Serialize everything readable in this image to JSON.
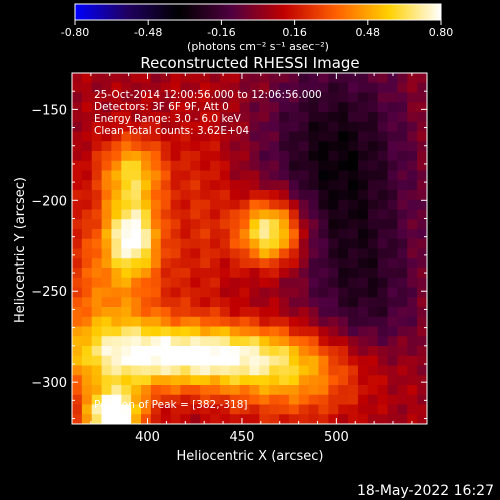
{
  "chart_data": {
    "type": "heatmap",
    "title": "Reconstructed RHESSI Image",
    "xlabel": "Heliocentric X (arcsec)",
    "ylabel": "Heliocentric Y (arcsec)",
    "xlim": [
      360,
      548
    ],
    "ylim": [
      -323,
      -130
    ],
    "x_ticks": [
      400,
      450,
      500
    ],
    "y_ticks": [
      -150,
      -200,
      -250,
      -300
    ],
    "colorbar": {
      "label": "(photons cm⁻² s⁻¹ asec⁻²)",
      "range": [
        -0.8,
        0.8
      ],
      "ticks": [
        "-0.80",
        "-0.48",
        "-0.16",
        "0.16",
        "0.48",
        "0.80"
      ],
      "colors": [
        "#0000ff",
        "#200060",
        "#000000",
        "#500040",
        "#c00000",
        "#ff6000",
        "#ffd000",
        "#ffffff"
      ]
    },
    "sources": [
      {
        "x": 465,
        "y": -217,
        "value": 0.75,
        "sx": 12,
        "sy": 13
      },
      {
        "x": 392,
        "y": -220,
        "value": 0.62,
        "sx": 10,
        "sy": 14
      },
      {
        "x": 392,
        "y": -185,
        "value": 0.5,
        "sx": 12,
        "sy": 14
      },
      {
        "x": 425,
        "y": -285,
        "value": 0.72,
        "sx": 42,
        "sy": 12
      },
      {
        "x": 382,
        "y": -318,
        "value": 0.8,
        "sx": 10,
        "sy": 10
      },
      {
        "x": 380,
        "y": -262,
        "value": 0.35,
        "sx": 22,
        "sy": 38
      },
      {
        "x": 480,
        "y": -300,
        "value": 0.35,
        "sx": 30,
        "sy": 16
      },
      {
        "x": 500,
        "y": -175,
        "value": -0.35,
        "sx": 28,
        "sy": 40
      },
      {
        "x": 515,
        "y": -255,
        "value": -0.25,
        "sx": 22,
        "sy": 35
      },
      {
        "x": 430,
        "y": -205,
        "value": 0.15,
        "sx": 12,
        "sy": 40
      }
    ]
  },
  "annotations": {
    "time_range": "25-Oct-2014 12:00:56.000 to 12:06:56.000",
    "detectors": "Detectors: 3F 6F 9F, Att 0",
    "energy_range": "Energy Range: 3.0 - 6.0 keV",
    "clean": "Clean     Total counts: 3.62E+04",
    "peak": "Position of Peak = [382,-318]"
  },
  "footer": {
    "timestamp": "18-May-2022 16:27"
  }
}
